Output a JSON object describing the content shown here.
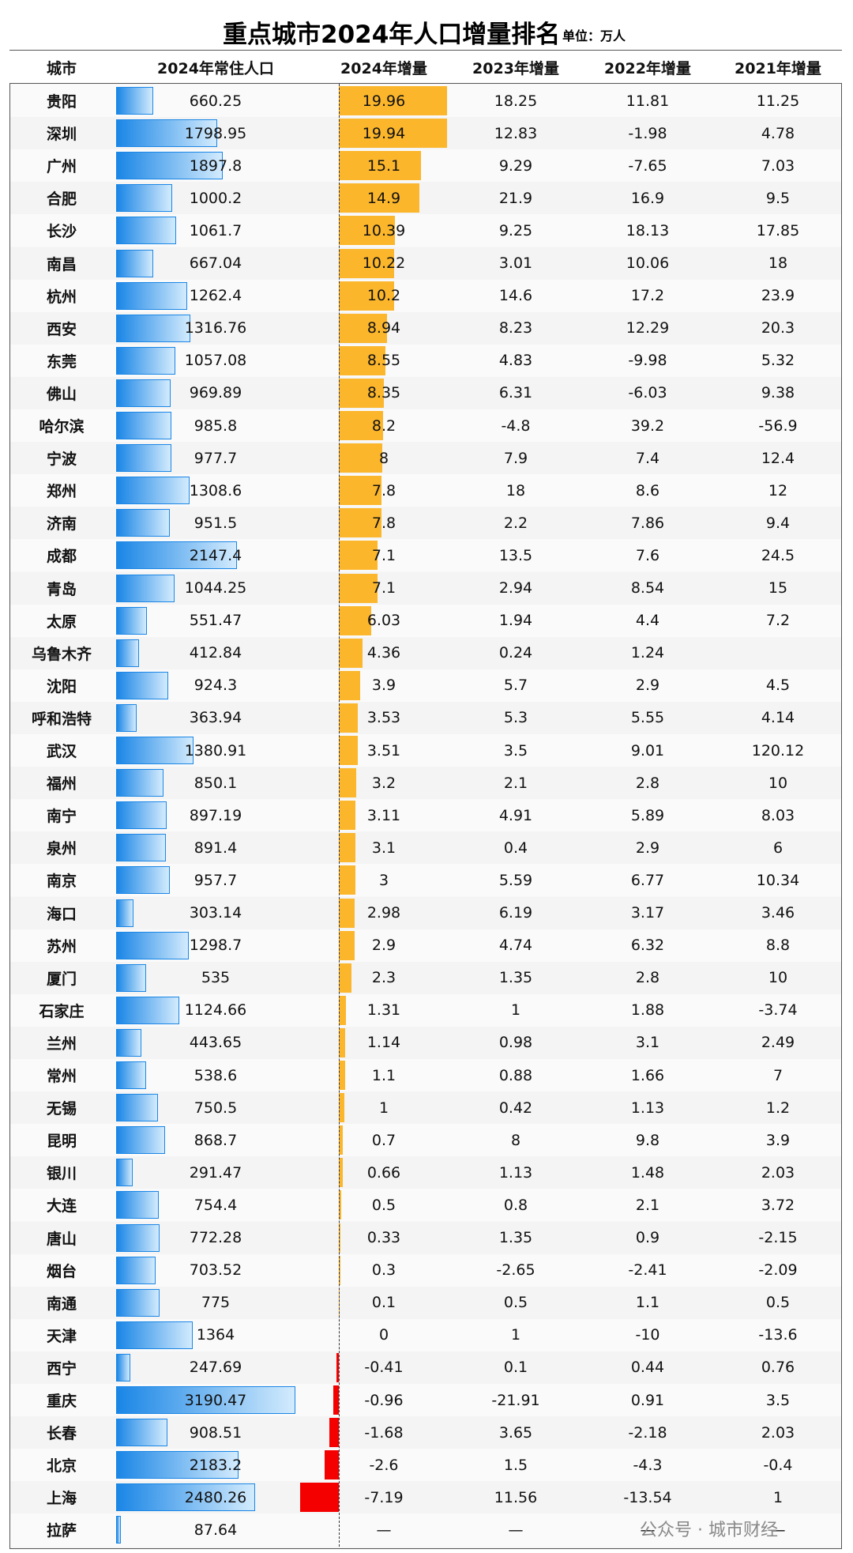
{
  "table": {
    "title": "重点城市2024年人口增量排名",
    "unit": "单位：万人",
    "headers": [
      "城市",
      "2024年常住人口",
      "2024年增量",
      "2023年增量",
      "2022年增量",
      "2021年增量"
    ],
    "rows": [
      [
        "贵阳",
        660.25,
        19.96,
        18.25,
        11.81,
        11.25
      ],
      [
        "深圳",
        1798.95,
        19.94,
        12.83,
        -1.98,
        4.78
      ],
      [
        "广州",
        1897.8,
        15.1,
        9.29,
        -7.65,
        7.03
      ],
      [
        "合肥",
        1000.2,
        14.9,
        21.9,
        16.9,
        9.5
      ],
      [
        "长沙",
        1061.7,
        10.39,
        9.25,
        18.13,
        17.85
      ],
      [
        "南昌",
        667.04,
        10.22,
        3.01,
        10.06,
        18
      ],
      [
        "杭州",
        1262.4,
        10.2,
        14.6,
        17.2,
        23.9
      ],
      [
        "西安",
        1316.76,
        8.94,
        8.23,
        12.29,
        20.3
      ],
      [
        "东莞",
        1057.08,
        8.55,
        4.83,
        -9.98,
        5.32
      ],
      [
        "佛山",
        969.89,
        8.35,
        6.31,
        -6.03,
        9.38
      ],
      [
        "哈尔滨",
        985.8,
        8.2,
        -4.8,
        39.2,
        -56.9
      ],
      [
        "宁波",
        977.7,
        8,
        7.9,
        7.4,
        12.4
      ],
      [
        "郑州",
        1308.6,
        7.8,
        18,
        8.6,
        12
      ],
      [
        "济南",
        951.5,
        7.8,
        2.2,
        7.86,
        9.4
      ],
      [
        "成都",
        2147.4,
        7.1,
        13.5,
        7.6,
        24.5
      ],
      [
        "青岛",
        1044.25,
        7.1,
        2.94,
        8.54,
        15
      ],
      [
        "太原",
        551.47,
        6.03,
        1.94,
        4.4,
        7.2
      ],
      [
        "乌鲁木齐",
        412.84,
        4.36,
        0.24,
        1.24,
        null
      ],
      [
        "沈阳",
        924.3,
        3.9,
        5.7,
        2.9,
        4.5
      ],
      [
        "呼和浩特",
        363.94,
        3.53,
        5.3,
        5.55,
        4.14
      ],
      [
        "武汉",
        1380.91,
        3.51,
        3.5,
        9.01,
        120.12
      ],
      [
        "福州",
        850.1,
        3.2,
        2.1,
        2.8,
        10
      ],
      [
        "南宁",
        897.19,
        3.11,
        4.91,
        5.89,
        8.03
      ],
      [
        "泉州",
        891.4,
        3.1,
        0.4,
        2.9,
        6
      ],
      [
        "南京",
        957.7,
        3,
        5.59,
        6.77,
        10.34
      ],
      [
        "海口",
        303.14,
        2.98,
        6.19,
        3.17,
        3.46
      ],
      [
        "苏州",
        1298.7,
        2.9,
        4.74,
        6.32,
        8.8
      ],
      [
        "厦门",
        535,
        2.3,
        1.35,
        2.8,
        10
      ],
      [
        "石家庄",
        1124.66,
        1.31,
        1,
        1.88,
        -3.74
      ],
      [
        "兰州",
        443.65,
        1.14,
        0.98,
        3.1,
        2.49
      ],
      [
        "常州",
        538.6,
        1.1,
        0.88,
        1.66,
        7
      ],
      [
        "无锡",
        750.5,
        1,
        0.42,
        1.13,
        1.2
      ],
      [
        "昆明",
        868.7,
        0.7,
        8,
        9.8,
        3.9
      ],
      [
        "银川",
        291.47,
        0.66,
        1.13,
        1.48,
        2.03
      ],
      [
        "大连",
        754.4,
        0.5,
        0.8,
        2.1,
        3.72
      ],
      [
        "唐山",
        772.28,
        0.33,
        1.35,
        0.9,
        -2.15
      ],
      [
        "烟台",
        703.52,
        0.3,
        -2.65,
        -2.41,
        -2.09
      ],
      [
        "南通",
        775,
        0.1,
        0.5,
        1.1,
        0.5
      ],
      [
        "天津",
        1364,
        0,
        1,
        -10,
        -13.6
      ],
      [
        "西宁",
        247.69,
        -0.41,
        0.1,
        0.44,
        0.76
      ],
      [
        "重庆",
        3190.47,
        -0.96,
        -21.91,
        0.91,
        3.5
      ],
      [
        "长春",
        908.51,
        -1.68,
        3.65,
        -2.18,
        2.03
      ],
      [
        "北京",
        2183.2,
        -2.6,
        1.5,
        -4.3,
        -0.4
      ],
      [
        "上海",
        2480.26,
        -7.19,
        11.56,
        -13.54,
        1
      ],
      [
        "拉萨",
        87.64,
        "—",
        "—",
        "—",
        "—"
      ]
    ],
    "watermark": "公众号 · 城市财经"
  }
}
